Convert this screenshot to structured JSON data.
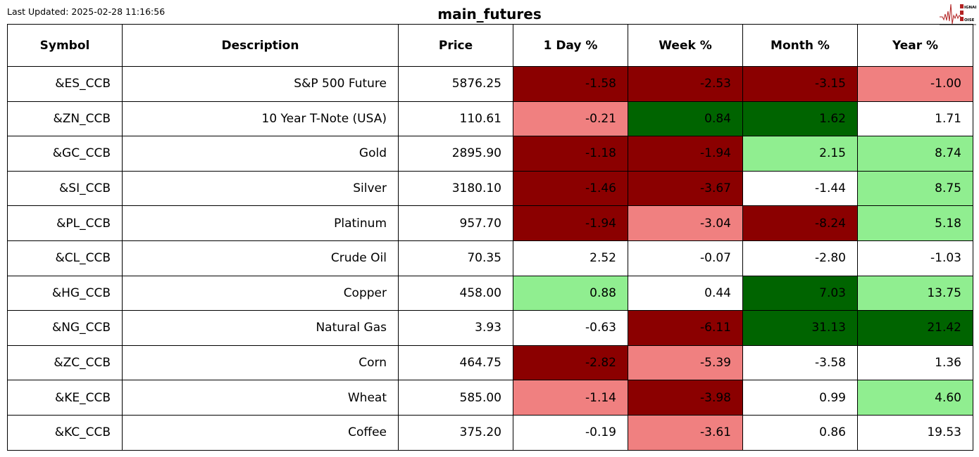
{
  "last_updated": "Last Updated: 2025-02-28 11:16:56",
  "title": "main_futures",
  "logo": {
    "text": "SIGNAL 2 NOISE",
    "color": "#b22222"
  },
  "colors": {
    "dark_red": "#8b0000",
    "light_red": "#f08080",
    "dark_green": "#006400",
    "light_green": "#90ee90",
    "neutral": "#ffffff"
  },
  "chart_data": {
    "type": "table",
    "columns": [
      "Symbol",
      "Description",
      "Price",
      "1 Day %",
      "Week %",
      "Month %",
      "Year %"
    ],
    "rows": [
      {
        "cells": [
          "&ES_CCB",
          "S&P 500 Future",
          "5876.25",
          "-1.58",
          "-2.53",
          "-3.15",
          "-1.00"
        ],
        "colors": [
          "#8b0000",
          "#8b0000",
          "#8b0000",
          "#f08080"
        ]
      },
      {
        "cells": [
          "&ZN_CCB",
          "10 Year T-Note (USA)",
          "110.61",
          "-0.21",
          "0.84",
          "1.62",
          "1.71"
        ],
        "colors": [
          "#f08080",
          "#006400",
          "#006400",
          "#ffffff"
        ]
      },
      {
        "cells": [
          "&GC_CCB",
          "Gold",
          "2895.90",
          "-1.18",
          "-1.94",
          "2.15",
          "8.74"
        ],
        "colors": [
          "#8b0000",
          "#8b0000",
          "#90ee90",
          "#90ee90"
        ]
      },
      {
        "cells": [
          "&SI_CCB",
          "Silver",
          "3180.10",
          "-1.46",
          "-3.67",
          "-1.44",
          "8.75"
        ],
        "colors": [
          "#8b0000",
          "#8b0000",
          "#ffffff",
          "#90ee90"
        ]
      },
      {
        "cells": [
          "&PL_CCB",
          "Platinum",
          "957.70",
          "-1.94",
          "-3.04",
          "-8.24",
          "5.18"
        ],
        "colors": [
          "#8b0000",
          "#f08080",
          "#8b0000",
          "#90ee90"
        ]
      },
      {
        "cells": [
          "&CL_CCB",
          "Crude Oil",
          "70.35",
          "2.52",
          "-0.07",
          "-2.80",
          "-1.03"
        ],
        "colors": [
          "#ffffff",
          "#ffffff",
          "#ffffff",
          "#ffffff"
        ]
      },
      {
        "cells": [
          "&HG_CCB",
          "Copper",
          "458.00",
          "0.88",
          "0.44",
          "7.03",
          "13.75"
        ],
        "colors": [
          "#90ee90",
          "#ffffff",
          "#006400",
          "#90ee90"
        ]
      },
      {
        "cells": [
          "&NG_CCB",
          "Natural Gas",
          "3.93",
          "-0.63",
          "-6.11",
          "31.13",
          "21.42"
        ],
        "colors": [
          "#ffffff",
          "#8b0000",
          "#006400",
          "#006400"
        ]
      },
      {
        "cells": [
          "&ZC_CCB",
          "Corn",
          "464.75",
          "-2.82",
          "-5.39",
          "-3.58",
          "1.36"
        ],
        "colors": [
          "#8b0000",
          "#f08080",
          "#ffffff",
          "#ffffff"
        ]
      },
      {
        "cells": [
          "&KE_CCB",
          "Wheat",
          "585.00",
          "-1.14",
          "-3.98",
          "0.99",
          "4.60"
        ],
        "colors": [
          "#f08080",
          "#8b0000",
          "#ffffff",
          "#90ee90"
        ]
      },
      {
        "cells": [
          "&KC_CCB",
          "Coffee",
          "375.20",
          "-0.19",
          "-3.61",
          "0.86",
          "19.53"
        ],
        "colors": [
          "#ffffff",
          "#f08080",
          "#ffffff",
          "#ffffff"
        ]
      }
    ]
  }
}
